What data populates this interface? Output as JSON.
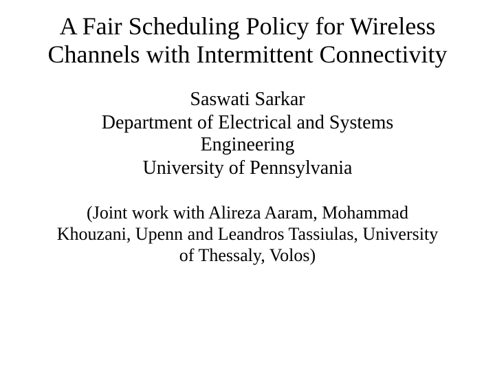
{
  "slide": {
    "title": "A Fair Scheduling Policy for Wireless Channels with Intermittent Connectivity",
    "author": "Saswati Sarkar",
    "department": "Department of Electrical and Systems Engineering",
    "university": "University of Pennsylvania",
    "joint_work": "(Joint work with Alireza Aaram, Mohammad Khouzani, Upenn and Leandros Tassiulas, University of Thessaly, Volos)",
    "background_color": "#ffffff",
    "text_color": "#000000",
    "title_fontsize": 36,
    "body_fontsize": 28,
    "joint_fontsize": 26,
    "font_family": "Times New Roman"
  }
}
